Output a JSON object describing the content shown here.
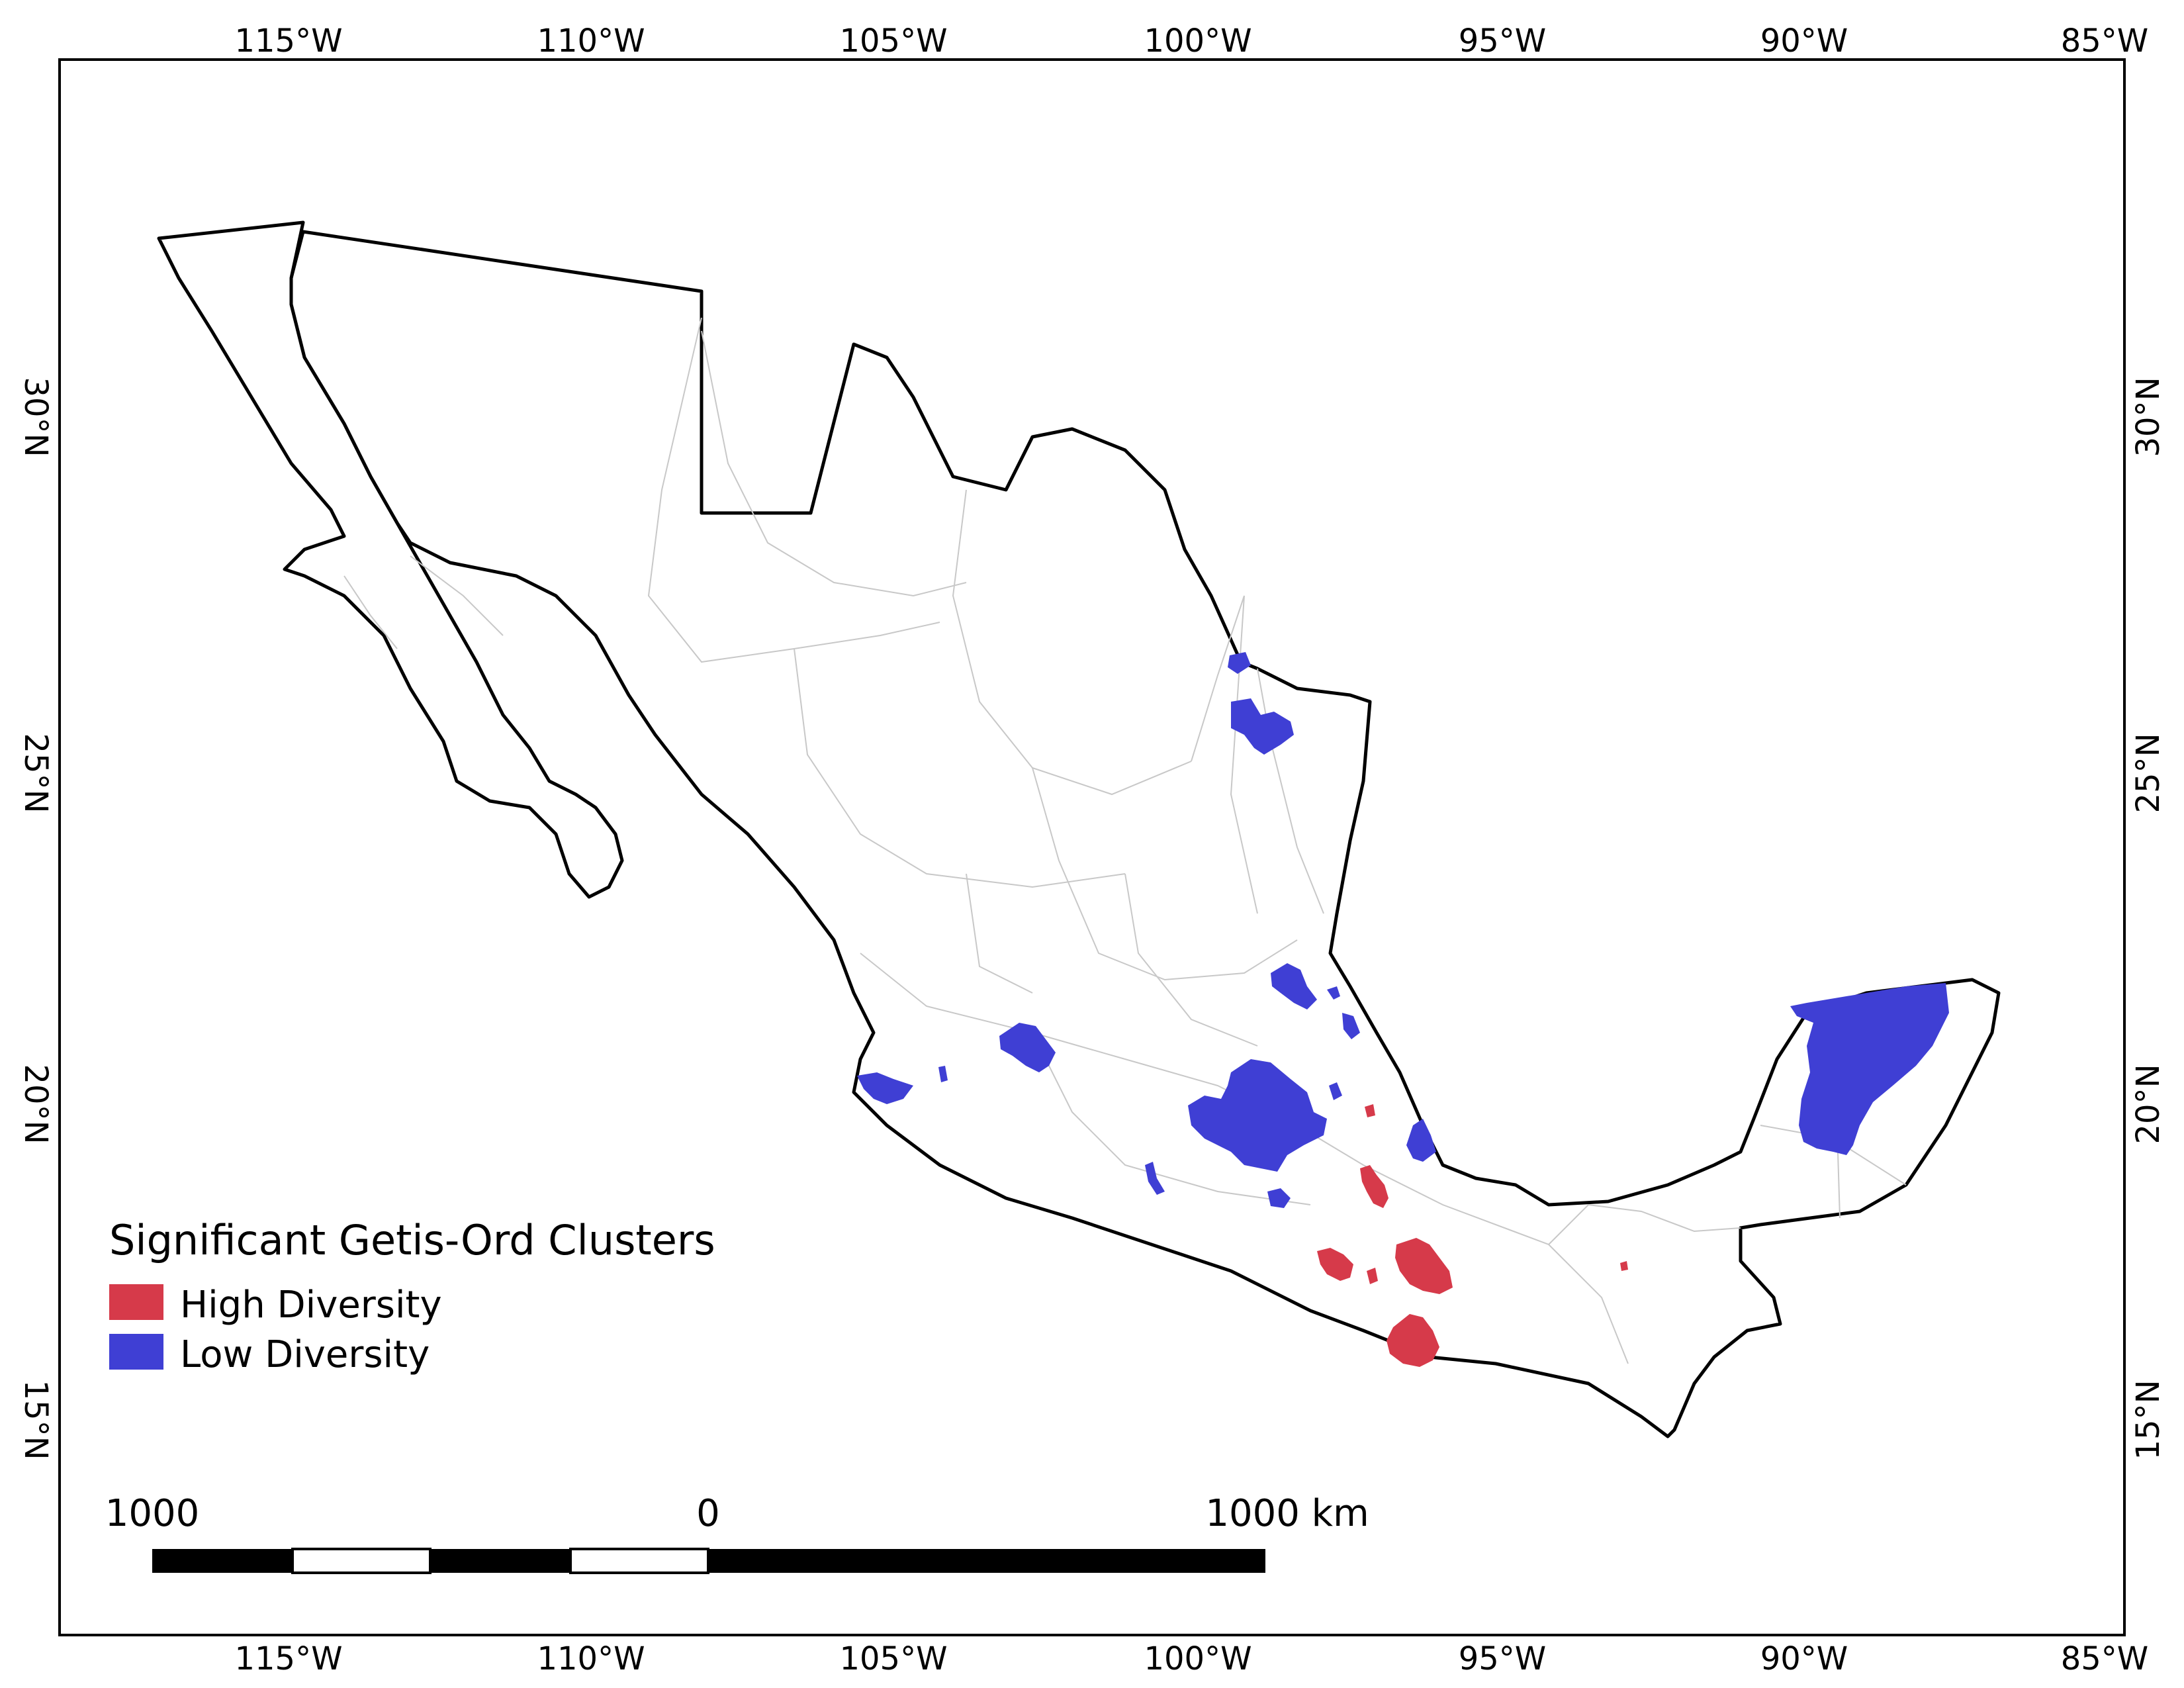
{
  "map": {
    "lon_labels": [
      "115°W",
      "110°W",
      "105°W",
      "100°W",
      "95°W",
      "90°W",
      "85°W"
    ],
    "lat_labels": [
      "30°N",
      "25°N",
      "20°N",
      "15°N"
    ]
  },
  "legend": {
    "title": "Significant Getis-Ord Clusters",
    "items": [
      {
        "label": "High Diversity",
        "color": "#d63a4a"
      },
      {
        "label": "Low Diversity",
        "color": "#3f3fd4"
      }
    ]
  },
  "scale_bar": {
    "left_label": "1000",
    "mid_label": "0",
    "right_label": "1000 km"
  },
  "colors": {
    "high": "#d63a4a",
    "low": "#3f3fd4",
    "outline": "#000000",
    "internal_borders": "#c8c8c8"
  }
}
